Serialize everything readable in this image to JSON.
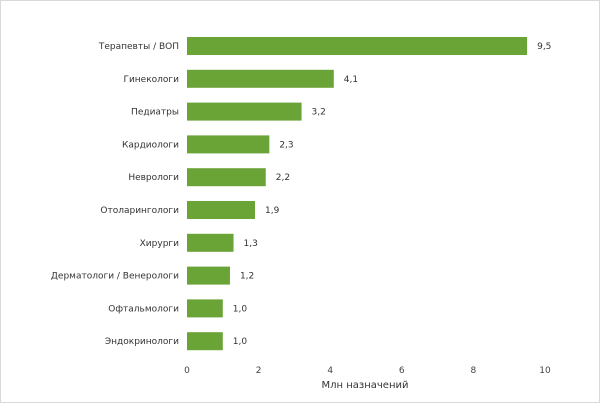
{
  "chart_data": {
    "type": "bar",
    "orientation": "horizontal",
    "categories": [
      "Терапевты / ВОП",
      "Гинекологи",
      "Педиатры",
      "Кардиологи",
      "Неврологи",
      "Отоларингологи",
      "Хирурги",
      "Дерматологи / Венерологи",
      "Офтальмологи",
      "Эндокринологи"
    ],
    "values": [
      9.5,
      4.1,
      3.2,
      2.3,
      2.2,
      1.9,
      1.3,
      1.2,
      1.0,
      1.0
    ],
    "value_labels": [
      "9,5",
      "4,1",
      "3,2",
      "2,3",
      "2,2",
      "1,9",
      "1,3",
      "1,2",
      "1,0",
      "1,0"
    ],
    "xlabel": "Млн назначений",
    "ylabel": "",
    "xlim": [
      0,
      10
    ],
    "xticks": [
      0,
      2,
      4,
      6,
      8,
      10
    ],
    "grid": false,
    "legend": "none",
    "bar_color": "#6aa336"
  }
}
